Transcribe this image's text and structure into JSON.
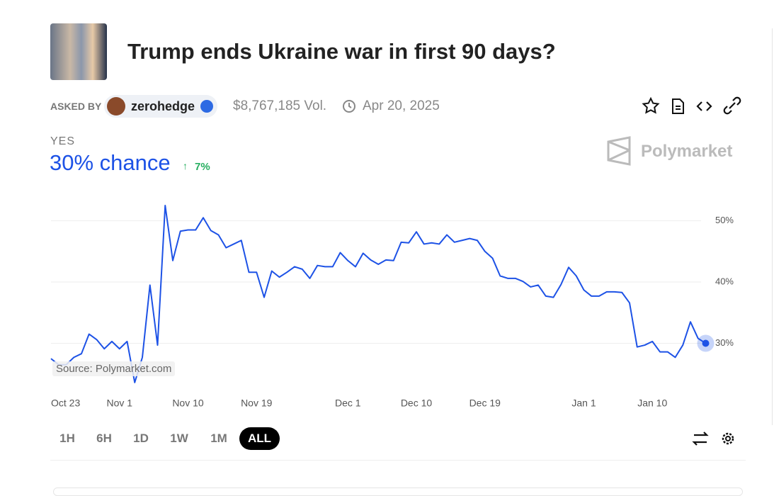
{
  "header": {
    "title": "Trump ends Ukraine war in first 90 days?",
    "asked_by": "ASKED BY",
    "user": "zerohedge",
    "volume": "$8,767,185 Vol.",
    "date": "Apr 20, 2025"
  },
  "outcome": {
    "label": "YES",
    "chance": "30% chance",
    "change": "7%"
  },
  "brand": "Polymarket",
  "source": "Source: Polymarket.com",
  "ranges": [
    "1H",
    "6H",
    "1D",
    "1W",
    "1M",
    "ALL"
  ],
  "chart_data": {
    "type": "line",
    "color": "#1d52e6",
    "grid": true,
    "x": [
      "Oct 23",
      "Oct 24",
      "Oct 25",
      "Oct 26",
      "Oct 27",
      "Oct 28",
      "Oct 29",
      "Oct 30",
      "Oct 31",
      "Nov 1",
      "Nov 2",
      "Nov 3",
      "Nov 4",
      "Nov 5",
      "Nov 6",
      "Nov 7",
      "Nov 8",
      "Nov 9",
      "Nov 10",
      "Nov 11",
      "Nov 12",
      "Nov 13",
      "Nov 14",
      "Nov 15",
      "Nov 16",
      "Nov 17",
      "Nov 18",
      "Nov 19",
      "Nov 20",
      "Nov 21",
      "Nov 22",
      "Nov 23",
      "Nov 24",
      "Nov 25",
      "Nov 26",
      "Nov 27",
      "Nov 28",
      "Nov 29",
      "Nov 30",
      "Dec 1",
      "Dec 2",
      "Dec 3",
      "Dec 4",
      "Dec 5",
      "Dec 6",
      "Dec 7",
      "Dec 8",
      "Dec 9",
      "Dec 10",
      "Dec 11",
      "Dec 12",
      "Dec 13",
      "Dec 14",
      "Dec 15",
      "Dec 16",
      "Dec 17",
      "Dec 18",
      "Dec 19",
      "Dec 20",
      "Dec 21",
      "Dec 22",
      "Dec 23",
      "Dec 24",
      "Dec 25",
      "Dec 26",
      "Dec 27",
      "Dec 28",
      "Dec 29",
      "Dec 30",
      "Dec 31",
      "Jan 1",
      "Jan 2",
      "Jan 3",
      "Jan 4",
      "Jan 5",
      "Jan 6",
      "Jan 7",
      "Jan 8",
      "Jan 9",
      "Jan 10",
      "Jan 11",
      "Jan 12",
      "Jan 13",
      "Jan 14",
      "Jan 15",
      "Jan 16",
      "Jan 17"
    ],
    "values": [
      27.5,
      26.5,
      26.5,
      27.7,
      28.3,
      31.5,
      30.6,
      29.1,
      30.3,
      29.1,
      30.3,
      23.6,
      27.7,
      39.5,
      29.7,
      52.5,
      43.5,
      48.3,
      48.5,
      48.5,
      50.5,
      48.4,
      47.7,
      45.6,
      46.2,
      46.8,
      41.6,
      41.6,
      37.5,
      41.8,
      40.8,
      41.6,
      42.5,
      42.1,
      40.6,
      42.7,
      42.5,
      42.5,
      44.8,
      43.5,
      42.5,
      44.7,
      43.6,
      42.9,
      43.6,
      43.5,
      46.5,
      46.4,
      48.2,
      46.2,
      46.4,
      46.2,
      47.7,
      46.5,
      46.8,
      47.1,
      46.8,
      45.0,
      43.9,
      41.0,
      40.6,
      40.6,
      40.1,
      39.2,
      39.5,
      37.7,
      37.5,
      39.6,
      42.4,
      41.0,
      38.7,
      37.7,
      37.7,
      38.4,
      38.4,
      38.3,
      36.6,
      29.4,
      29.7,
      30.3,
      28.6,
      28.6,
      27.7,
      29.7,
      33.5,
      30.8,
      30.0
    ],
    "xticks": [
      "Oct 23",
      "Nov 1",
      "Nov 10",
      "Nov 19",
      "Dec 1",
      "Dec 10",
      "Dec 19",
      "Jan 1",
      "Jan 10"
    ],
    "ylim": [
      23,
      54
    ],
    "yticks": [
      {
        "value": 30,
        "label": "30%"
      },
      {
        "value": 40,
        "label": "40%"
      },
      {
        "value": 50,
        "label": "50%"
      }
    ]
  }
}
